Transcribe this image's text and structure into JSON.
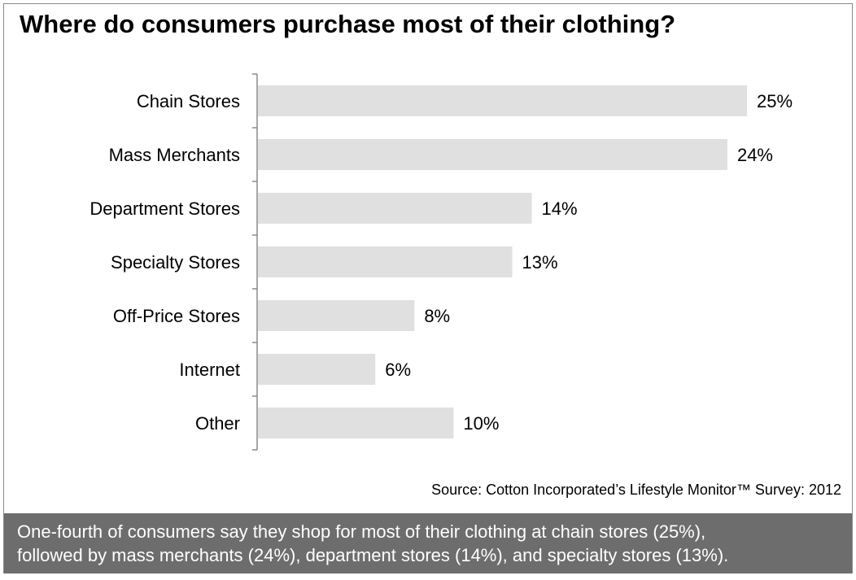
{
  "chart_data": {
    "type": "bar",
    "orientation": "horizontal",
    "title": "Where do consumers purchase most of their clothing?",
    "categories": [
      "Chain Stores",
      "Mass Merchants",
      "Department Stores",
      "Specialty Stores",
      "Off-Price Stores",
      "Internet",
      "Other"
    ],
    "values": [
      25,
      24,
      14,
      13,
      8,
      6,
      10
    ],
    "value_labels": [
      "25%",
      "24%",
      "14%",
      "13%",
      "8%",
      "6%",
      "10%"
    ],
    "xlim": [
      0,
      25
    ],
    "grid": false,
    "bar_color": "#e0e0e0"
  },
  "source": "Source: Cotton Incorporated’s Lifestyle Monitor™ Survey: 2012",
  "caption": {
    "line1": "One-fourth of consumers say they shop for most of their clothing at chain stores (25%),",
    "line2": "followed by  mass merchants (24%), department stores (14%), and specialty stores (13%)."
  },
  "colors": {
    "caption_background": "#6d6d6d",
    "axis": "#8a8a8a"
  }
}
